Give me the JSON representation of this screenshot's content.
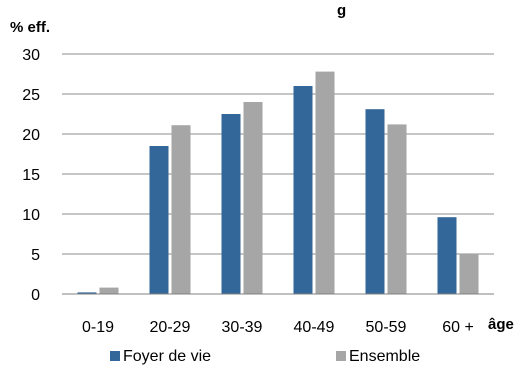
{
  "chart_data": {
    "type": "bar",
    "title": "",
    "title_fragment": "g",
    "ylabel": "% eff.",
    "xlabel": "âge",
    "categories": [
      "0-19",
      "20-29",
      "30-39",
      "40-49",
      "50-59",
      "60 +"
    ],
    "series": [
      {
        "name": "Foyer de vie",
        "color": "#336699",
        "values": [
          0.2,
          18.5,
          22.5,
          26.0,
          23.1,
          9.6
        ]
      },
      {
        "name": "Ensemble",
        "color": "#a6a6a6",
        "values": [
          0.8,
          21.1,
          24.0,
          27.8,
          21.2,
          5.0
        ]
      }
    ],
    "ylim": [
      0,
      30
    ],
    "yticks": [
      0,
      5,
      10,
      15,
      20,
      25,
      30
    ],
    "grid": true,
    "legend_position": "bottom"
  }
}
